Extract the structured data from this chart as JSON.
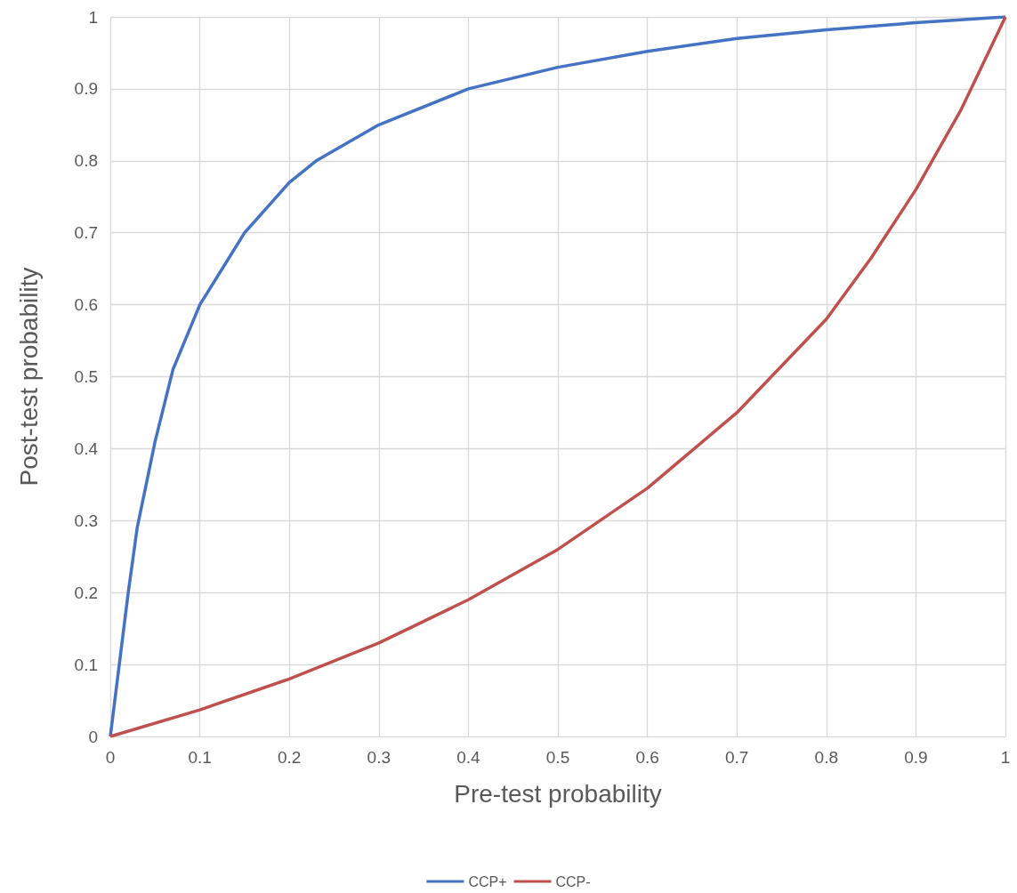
{
  "chart_data": {
    "type": "line",
    "xlabel": "Pre-test probability",
    "ylabel": "Post-test probability",
    "xlim": [
      0,
      1
    ],
    "ylim": [
      0,
      1
    ],
    "xticks": [
      0,
      0.1,
      0.2,
      0.3,
      0.4,
      0.5,
      0.6,
      0.7,
      0.8,
      0.9,
      1
    ],
    "yticks": [
      0,
      0.1,
      0.2,
      0.3,
      0.4,
      0.5,
      0.6,
      0.7,
      0.8,
      0.9,
      1
    ],
    "grid": true,
    "legend": "bottom",
    "marker": "none",
    "line_style": "solid",
    "series": [
      {
        "name": "CCP+",
        "color": "#4472c4",
        "x": [
          0,
          0.005,
          0.02,
          0.03,
          0.05,
          0.07,
          0.1,
          0.15,
          0.2,
          0.23,
          0.3,
          0.4,
          0.5,
          0.6,
          0.7,
          0.8,
          0.9,
          1
        ],
        "values": [
          0,
          0.05,
          0.2,
          0.29,
          0.41,
          0.51,
          0.6,
          0.7,
          0.77,
          0.8,
          0.85,
          0.9,
          0.93,
          0.952,
          0.97,
          0.982,
          0.992,
          1
        ]
      },
      {
        "name": "CCP-",
        "color": "#c0504d",
        "x": [
          0,
          0.1,
          0.2,
          0.3,
          0.4,
          0.5,
          0.6,
          0.7,
          0.8,
          0.85,
          0.9,
          0.95,
          1
        ],
        "values": [
          0,
          0.037,
          0.08,
          0.13,
          0.19,
          0.26,
          0.345,
          0.45,
          0.58,
          0.665,
          0.76,
          0.87,
          1
        ]
      }
    ]
  }
}
